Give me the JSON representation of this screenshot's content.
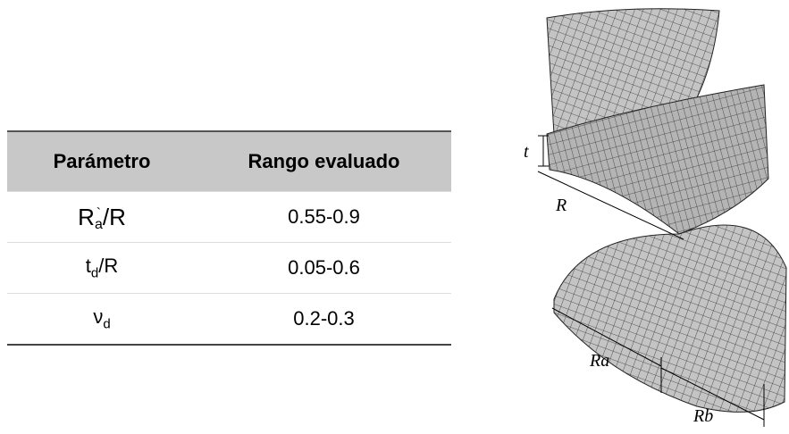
{
  "table": {
    "header": [
      "Parámetro",
      "Rango evaluado"
    ],
    "rows": [
      {
        "param": {
          "main": "R",
          "sup": "`",
          "sub": "a",
          "tail": "/R"
        },
        "range": "0.55-0.9"
      },
      {
        "param": {
          "main": "t",
          "sub": "d",
          "tail": "/R"
        },
        "range": "0.05-0.6"
      },
      {
        "param": {
          "main": "ν",
          "sub": "d"
        },
        "range": "0.2-0.3"
      }
    ]
  },
  "figure": {
    "labels": {
      "t": "t",
      "R": "R",
      "Ra": "Ra",
      "Rb": "Rb"
    }
  }
}
